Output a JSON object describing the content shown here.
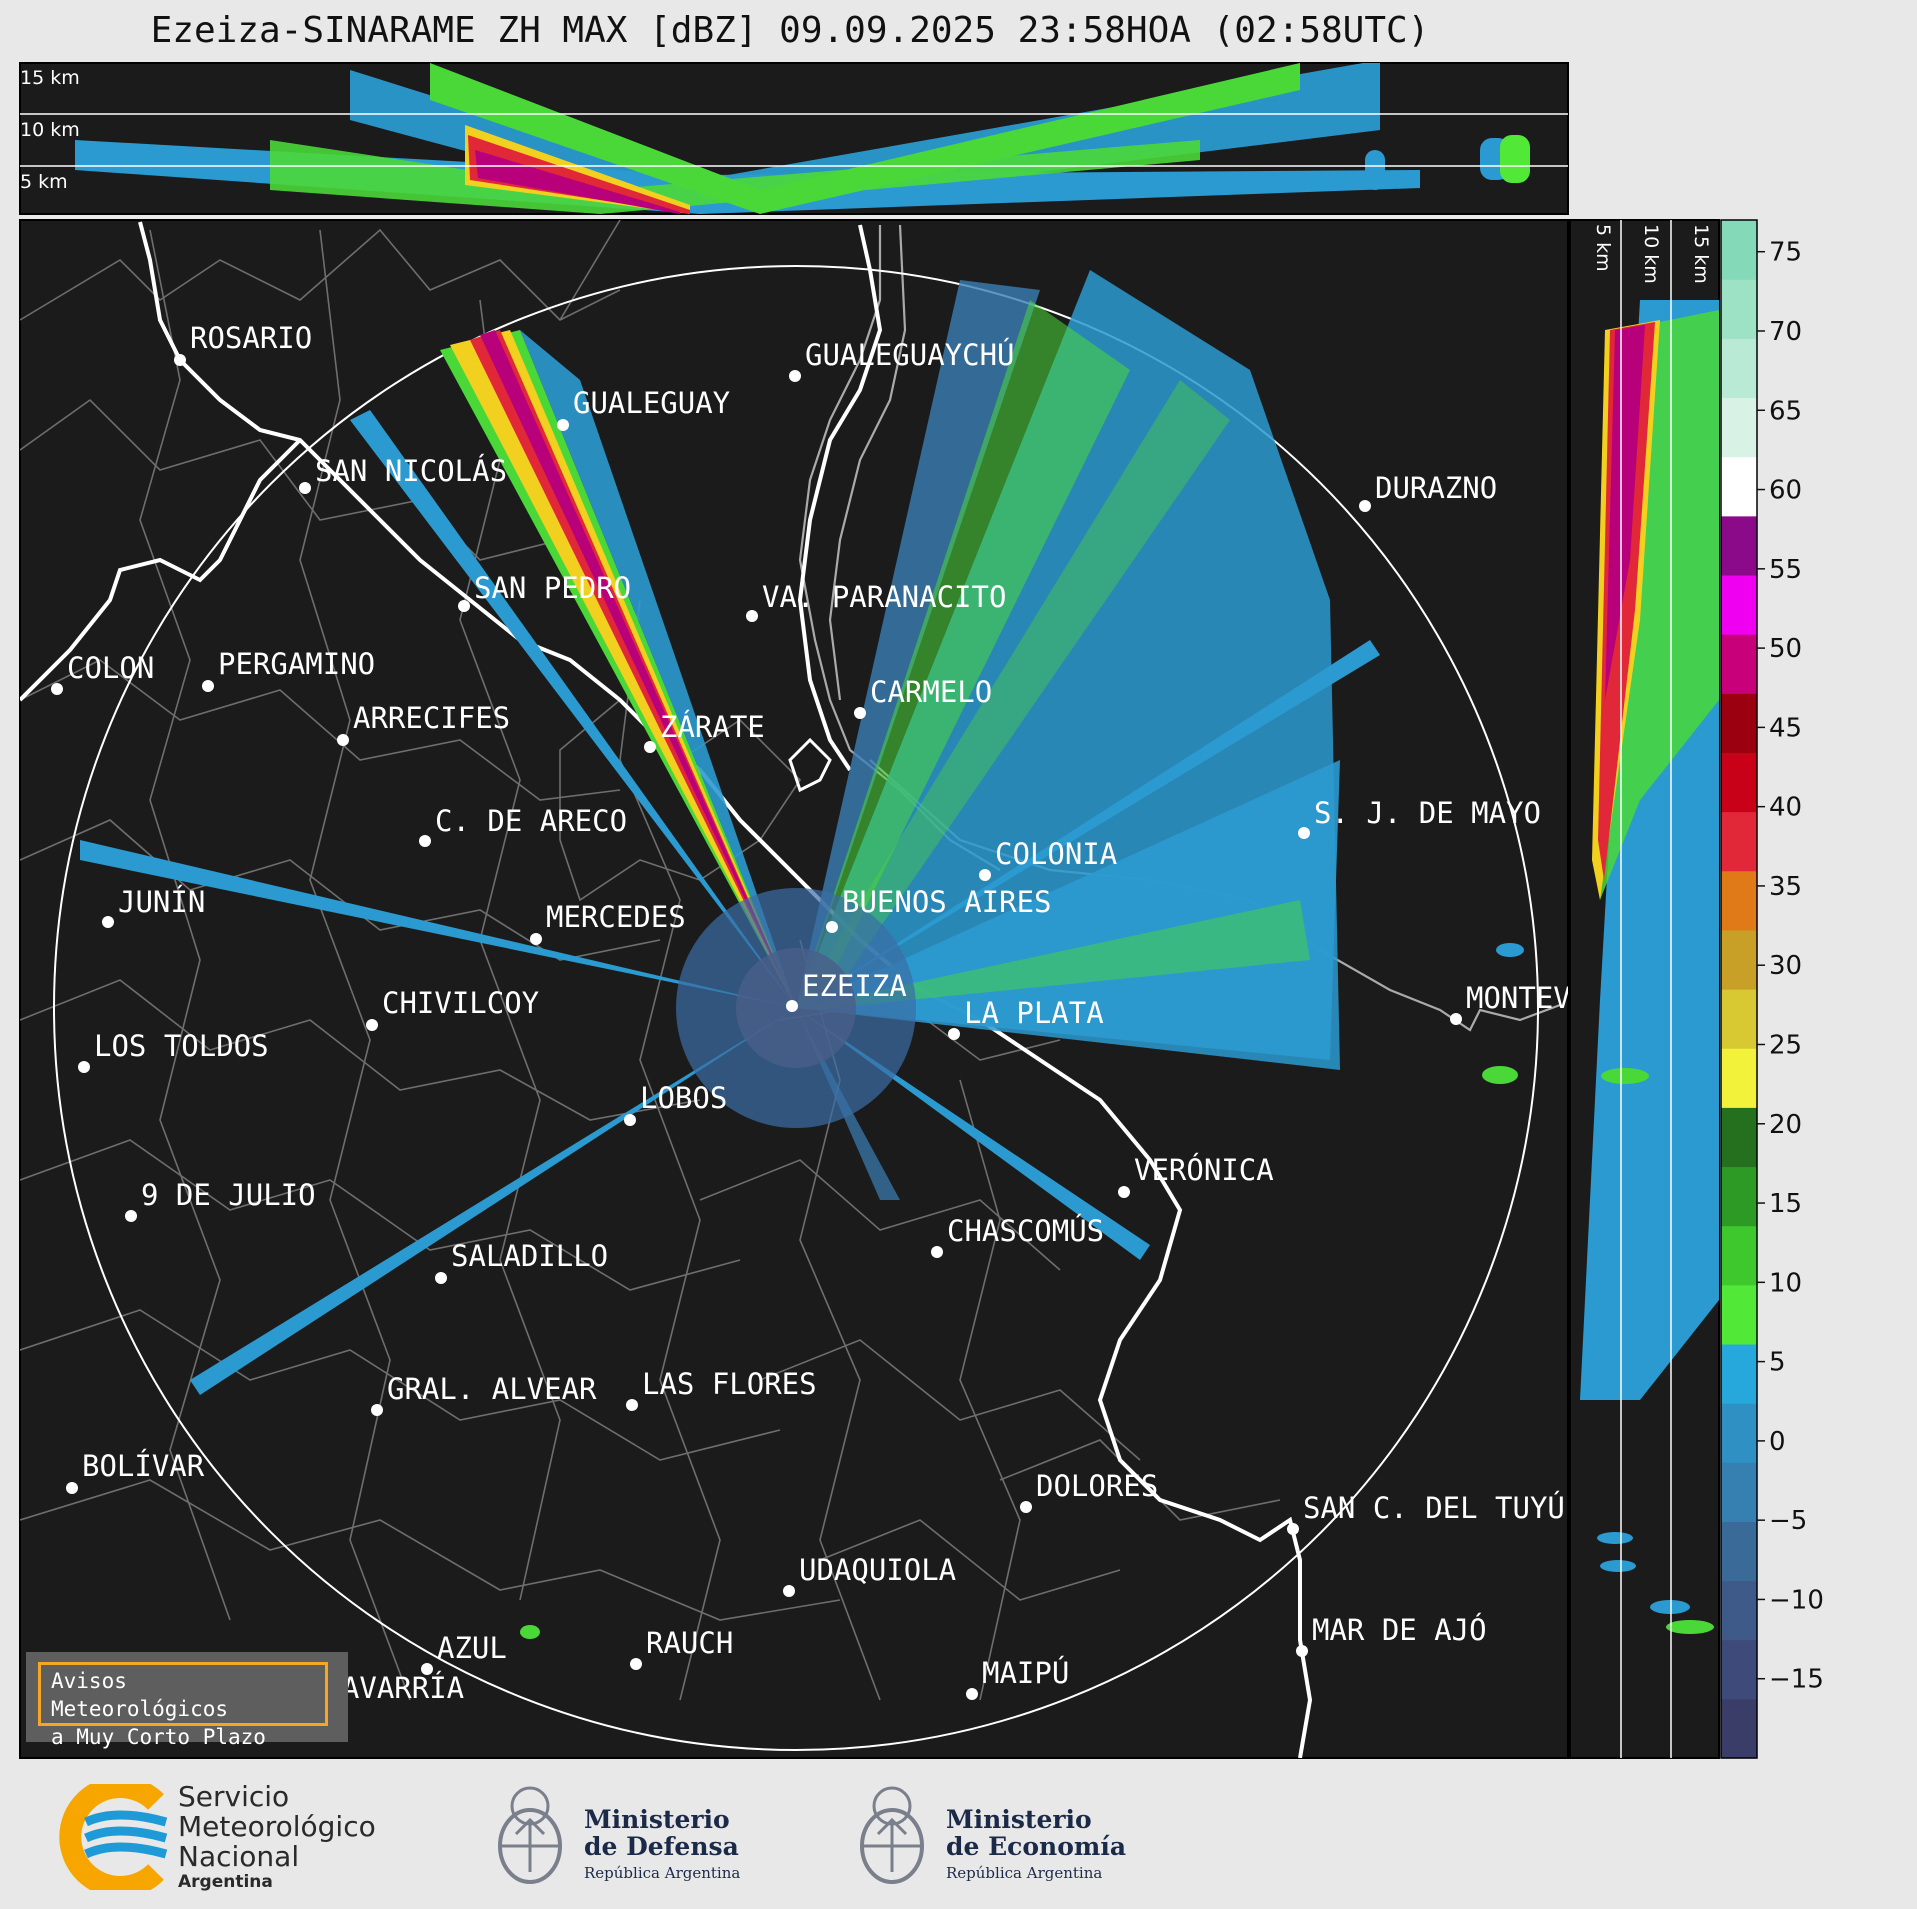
{
  "title": "Ezeiza-SINARAME ZH MAX [dBZ] 09.09.2025 23:58HOA (02:58UTC)",
  "top_height_labels": [
    "15 km",
    "10 km",
    "5 km"
  ],
  "side_height_labels": [
    "5 km",
    "10 km",
    "15 km"
  ],
  "colorbar": {
    "ticks": [
      "75",
      "70",
      "65",
      "60",
      "55",
      "50",
      "45",
      "40",
      "35",
      "30",
      "25",
      "20",
      "15",
      "10",
      "5",
      "0",
      "−5",
      "−10",
      "−15"
    ],
    "tick_values": [
      75,
      70,
      65,
      60,
      55,
      50,
      45,
      40,
      35,
      30,
      25,
      20,
      15,
      10,
      5,
      0,
      -5,
      -10,
      -15
    ],
    "range": [
      -20,
      77
    ],
    "colors_low_to_high": [
      "#3b3d69",
      "#3d4a7a",
      "#3d5a88",
      "#3a6a98",
      "#3580b0",
      "#2f90c4",
      "#27a8dc",
      "#52e838",
      "#3fc82e",
      "#2e9a26",
      "#24701e",
      "#f2f23a",
      "#d8c832",
      "#c8a028",
      "#e07a18",
      "#e02838",
      "#c80018",
      "#9a0010",
      "#c8007a",
      "#f000f0",
      "#8a0a8a",
      "#ffffff",
      "#d8f2e6",
      "#b8ead6",
      "#9ee2c6",
      "#84dab8"
    ]
  },
  "cities": [
    {
      "name": "ROSARIO"
    },
    {
      "name": "GUALEGUAYCHÚ"
    },
    {
      "name": "GUALEGUAY"
    },
    {
      "name": "SAN NICOLÁS"
    },
    {
      "name": "DURAZNO"
    },
    {
      "name": "SAN PEDRO"
    },
    {
      "name": "VA. PARANACITO"
    },
    {
      "name": "COLON"
    },
    {
      "name": "PERGAMINO"
    },
    {
      "name": "CARMELO"
    },
    {
      "name": "ARRECIFES"
    },
    {
      "name": "ZÁRATE"
    },
    {
      "name": "S. J. DE MAYO"
    },
    {
      "name": "C. DE ARECO"
    },
    {
      "name": "COLONIA"
    },
    {
      "name": "JUNÍN"
    },
    {
      "name": "MERCEDES"
    },
    {
      "name": "BUENOS AIRES"
    },
    {
      "name": "MONTEV"
    },
    {
      "name": "EZEIZA"
    },
    {
      "name": "CHIVILCOY"
    },
    {
      "name": "LA PLATA"
    },
    {
      "name": "LOS TOLDOS"
    },
    {
      "name": "LOBOS"
    },
    {
      "name": "VERÓNICA"
    },
    {
      "name": "9 DE JULIO"
    },
    {
      "name": "CHASCOMÚS"
    },
    {
      "name": "SALADILLO"
    },
    {
      "name": "GRAL. ALVEAR"
    },
    {
      "name": "LAS FLORES"
    },
    {
      "name": "BOLÍVAR"
    },
    {
      "name": "DOLORES"
    },
    {
      "name": "SAN C. DEL TUYÚ"
    },
    {
      "name": "UDAQUIOLA"
    },
    {
      "name": "MAR DE AJÓ"
    },
    {
      "name": "AZUL"
    },
    {
      "name": "RAUCH"
    },
    {
      "name": "OLAVARRÍA"
    },
    {
      "name": "MAIPÚ"
    }
  ],
  "warning_box": {
    "line1": "Avisos Meteorológicos",
    "line2": "a Muy Corto Plazo"
  },
  "footer": {
    "smn_line1": "Servicio",
    "smn_line2": "Meteorológico",
    "smn_line3": "Nacional",
    "smn_line4": "Argentina",
    "defensa_line1": "Ministerio",
    "defensa_line2": "de Defensa",
    "defensa_line3": "República Argentina",
    "economia_line1": "Ministerio",
    "economia_line2": "de Economía",
    "economia_line3": "República Argentina"
  },
  "colors": {
    "map_bg": "#1b1b1b",
    "accent_orange": "#f5a623",
    "smn_blue": "#1e9ad6",
    "smn_yellow": "#f7a600"
  }
}
